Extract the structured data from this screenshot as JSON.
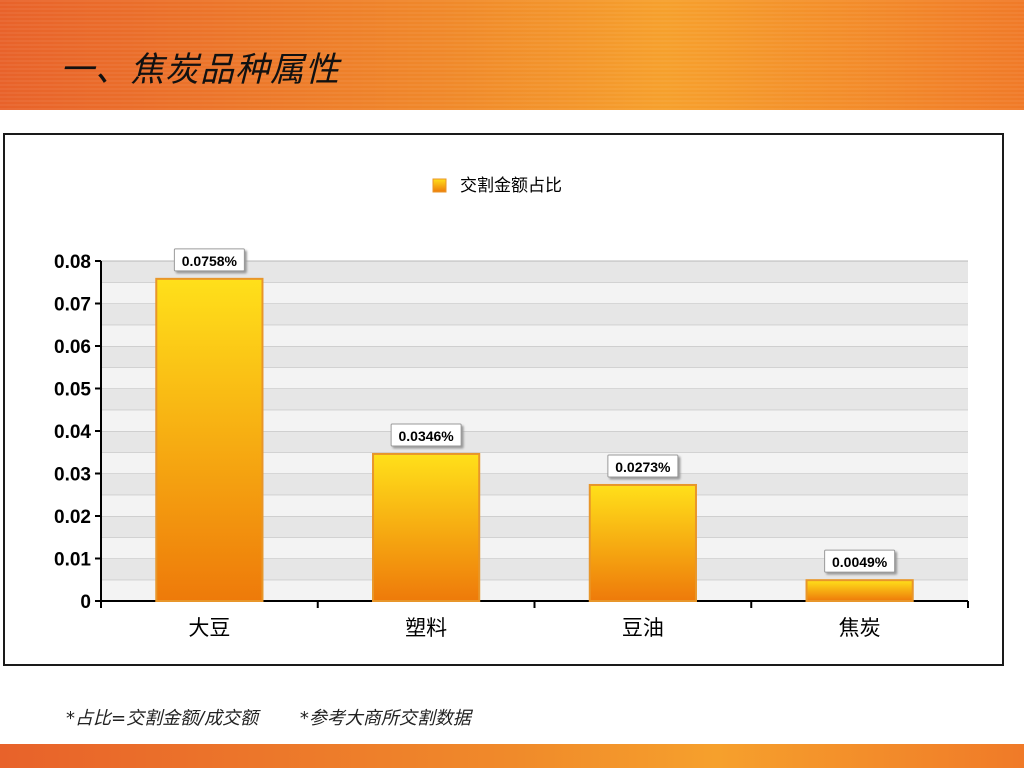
{
  "header": {
    "title": "一、焦炭品种属性"
  },
  "footnote": {
    "note1": "*占比=交割金额/成交额",
    "note2": "*参考大商所交割数据"
  },
  "colors": {
    "bar_top": "#ffe01a",
    "bar_bottom": "#ee7a0a",
    "bar_border": "#e8962a",
    "band_orange": "#f08a2a"
  },
  "chart_data": {
    "type": "bar",
    "categories": [
      "大豆",
      "塑料",
      "豆油",
      "焦炭"
    ],
    "series": [
      {
        "name": "交割金额占比",
        "values": [
          0.0758,
          0.0346,
          0.0273,
          0.0049
        ],
        "labels": [
          "0.0758%",
          "0.0346%",
          "0.0273%",
          "0.0049%"
        ]
      }
    ],
    "yticks": [
      "0",
      "0.01",
      "0.02",
      "0.03",
      "0.04",
      "0.05",
      "0.06",
      "0.07",
      "0.08"
    ],
    "ylim": [
      0,
      0.08
    ],
    "grid": true,
    "legend_position": "top-center"
  }
}
